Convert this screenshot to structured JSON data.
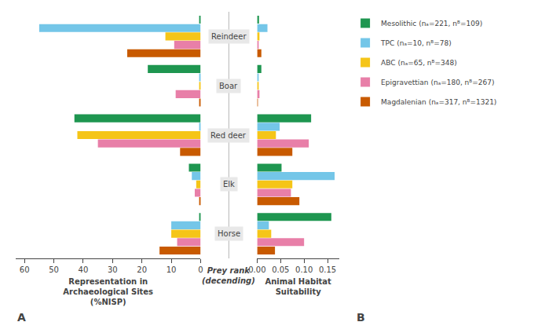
{
  "chart_data": [
    {
      "type": "bar",
      "orientation": "horizontal",
      "xlabel": "Representation in\nArchaeological Sites\n(%NISP)",
      "categories": [
        "Reindeer",
        "Boar",
        "Red deer",
        "Elk",
        "Horse"
      ],
      "series": [
        {
          "name": "Mesolithic (nₐ=221, nᴮ=109)",
          "color": "#1e9650",
          "values": [
            0.5,
            18.0,
            43.0,
            4.0,
            0.5
          ]
        },
        {
          "name": "TPC (nₐ=10, nᴮ=78)",
          "color": "#74c6e8",
          "values": [
            55.0,
            0.5,
            0.5,
            3.0,
            10.0
          ]
        },
        {
          "name": "ABC (nₐ=65, nᴮ=348)",
          "color": "#f5c518",
          "values": [
            12.0,
            0.5,
            42.0,
            1.5,
            10.0
          ]
        },
        {
          "name": "Epigravettian (nₐ=180, nᴮ=267)",
          "color": "#e87fa8",
          "values": [
            9.0,
            8.5,
            35.0,
            2.0,
            8.0
          ]
        },
        {
          "name": "Magdalenian (nₐ=317, nᴮ=1321)",
          "color": "#c85a00",
          "values": [
            25.0,
            0.5,
            7.0,
            0.5,
            14.0
          ]
        }
      ],
      "xlim": [
        63,
        0
      ],
      "xticks": [
        60,
        50,
        40,
        30,
        20,
        10,
        0
      ],
      "grid": false,
      "tick_labels": "x",
      "legend": "right",
      "annotations": [
        "Prey rank\n(decending)",
        "A"
      ]
    },
    {
      "type": "bar",
      "orientation": "horizontal",
      "xlabel": "Animal Habitat\nSuitability",
      "categories": [
        "Reindeer",
        "Boar",
        "Red deer",
        "Elk",
        "Horse"
      ],
      "series": [
        {
          "name": "Mesolithic (nₐ=221, nᴮ=109)",
          "color": "#1e9650",
          "values": [
            0.004,
            0.009,
            0.115,
            0.052,
            0.158
          ]
        },
        {
          "name": "TPC (nₐ=10, nᴮ=78)",
          "color": "#74c6e8",
          "values": [
            0.022,
            0.002,
            0.048,
            0.165,
            0.025
          ]
        },
        {
          "name": "ABC (nₐ=65, nᴮ=348)",
          "color": "#f5c518",
          "values": [
            0.005,
            0.002,
            0.04,
            0.075,
            0.03
          ]
        },
        {
          "name": "Epigravettian (nₐ=180, nᴮ=267)",
          "color": "#e87fa8",
          "values": [
            0.002,
            0.005,
            0.11,
            0.072,
            0.1
          ]
        },
        {
          "name": "Magdalenian (nₐ=317, nᴮ=1321)",
          "color": "#c85a00",
          "values": [
            0.009,
            0.001,
            0.075,
            0.09,
            0.038
          ]
        }
      ],
      "xlim": [
        0,
        0.175
      ],
      "xticks": [
        {
          "value": 0,
          "label": "0.00"
        },
        0.05,
        {
          "value": 0.1,
          "label": "0.10"
        },
        0.15
      ],
      "grid": false,
      "tick_labels": "x",
      "annotations": [
        "B"
      ]
    }
  ]
}
